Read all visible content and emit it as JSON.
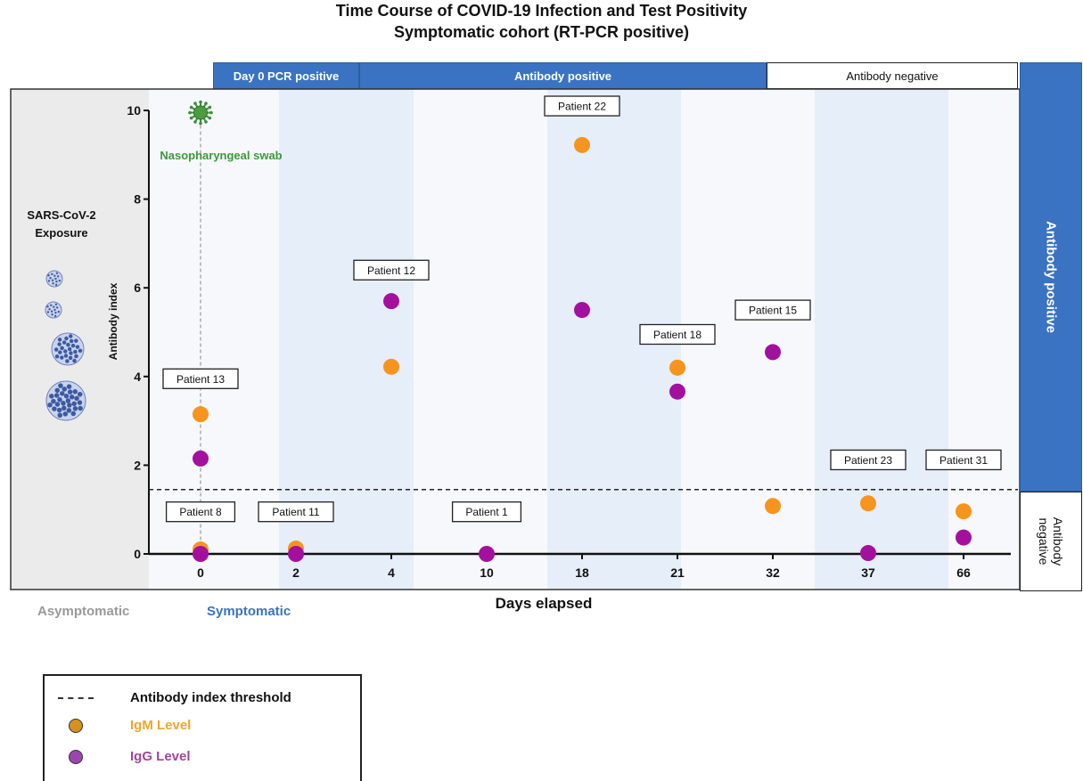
{
  "chart_data": {
    "type": "scatter",
    "title": "Time Course of COVID-19 Infection and Test Positivity",
    "subtitle": "Symptomatic cohort (RT-PCR positive)",
    "xlabel": "Days elapsed",
    "ylabel": "Antibody index",
    "categories": [
      "0",
      "2",
      "4",
      "10",
      "18",
      "21",
      "32",
      "37",
      "66"
    ],
    "ylim": [
      0,
      10
    ],
    "yticks": [
      "0",
      "2",
      "4",
      "6",
      "8",
      "10"
    ],
    "threshold": 1.45,
    "series": [
      {
        "name": "IgM Level",
        "color": "#f7941d",
        "points": [
          {
            "x": "0",
            "y": 3.15
          },
          {
            "x": "0",
            "y": 0.1
          },
          {
            "x": "2",
            "y": 0.12
          },
          {
            "x": "4",
            "y": 4.22
          },
          {
            "x": "18",
            "y": 9.22
          },
          {
            "x": "21",
            "y": 4.2
          },
          {
            "x": "32",
            "y": 1.08
          },
          {
            "x": "37",
            "y": 1.14
          },
          {
            "x": "66",
            "y": 0.96
          }
        ]
      },
      {
        "name": "IgG Level",
        "color": "#a3109e",
        "points": [
          {
            "x": "0",
            "y": 2.15
          },
          {
            "x": "0",
            "y": 0.0
          },
          {
            "x": "2",
            "y": 0.0
          },
          {
            "x": "4",
            "y": 5.7
          },
          {
            "x": "10",
            "y": 0.0
          },
          {
            "x": "18",
            "y": 5.5
          },
          {
            "x": "21",
            "y": 3.66
          },
          {
            "x": "32",
            "y": 4.55
          },
          {
            "x": "37",
            "y": 0.02
          },
          {
            "x": "66",
            "y": 0.37
          }
        ]
      }
    ],
    "annotations": [
      {
        "text": "Patient 13",
        "x": "0",
        "y": 3.95
      },
      {
        "text": "Patient 8",
        "x": "0",
        "y": 0.95
      },
      {
        "text": "Patient 11",
        "x": "2",
        "y": 0.95
      },
      {
        "text": "Patient 12",
        "x": "4",
        "y": 6.4
      },
      {
        "text": "Patient 1",
        "x": "10",
        "y": 0.95
      },
      {
        "text": "Patient 22",
        "x": "18",
        "y": 10.1
      },
      {
        "text": "Patient 18",
        "x": "21",
        "y": 4.95
      },
      {
        "text": "Patient 15",
        "x": "32",
        "y": 5.5
      },
      {
        "text": "Patient 23",
        "x": "37",
        "y": 2.12
      },
      {
        "text": "Patient 31",
        "x": "66",
        "y": 2.12
      }
    ],
    "swab_label": "Nasopharyngeal swab",
    "exposure_label": [
      "SARS-CoV-2",
      "Exposure"
    ]
  },
  "banners": {
    "day0": "Day 0  PCR positive",
    "antibody_positive": "Antibody positive",
    "antibody_negative": "Antibody negative"
  },
  "side": {
    "positive": "Antibody positive",
    "negative_line1": "Antibody",
    "negative_line2": "negative"
  },
  "phases": {
    "asymptomatic": "Asymptomatic",
    "symptomatic": "Symptomatic"
  },
  "legend": {
    "threshold": "Antibody index threshold",
    "igm": "IgM Level",
    "igg": "IgG Level"
  },
  "colors": {
    "igm": "#f7941d",
    "igg": "#a3109e",
    "banner_blue": "#3a73c1",
    "igm_legend_text": "#f0a52c",
    "igg_legend_text": "#a3449e",
    "symptomatic_text": "#3a73c1",
    "asymptomatic_text": "#999999",
    "swab_green": "#3a9a3a"
  },
  "icons": {
    "virus": "virus-icon"
  }
}
